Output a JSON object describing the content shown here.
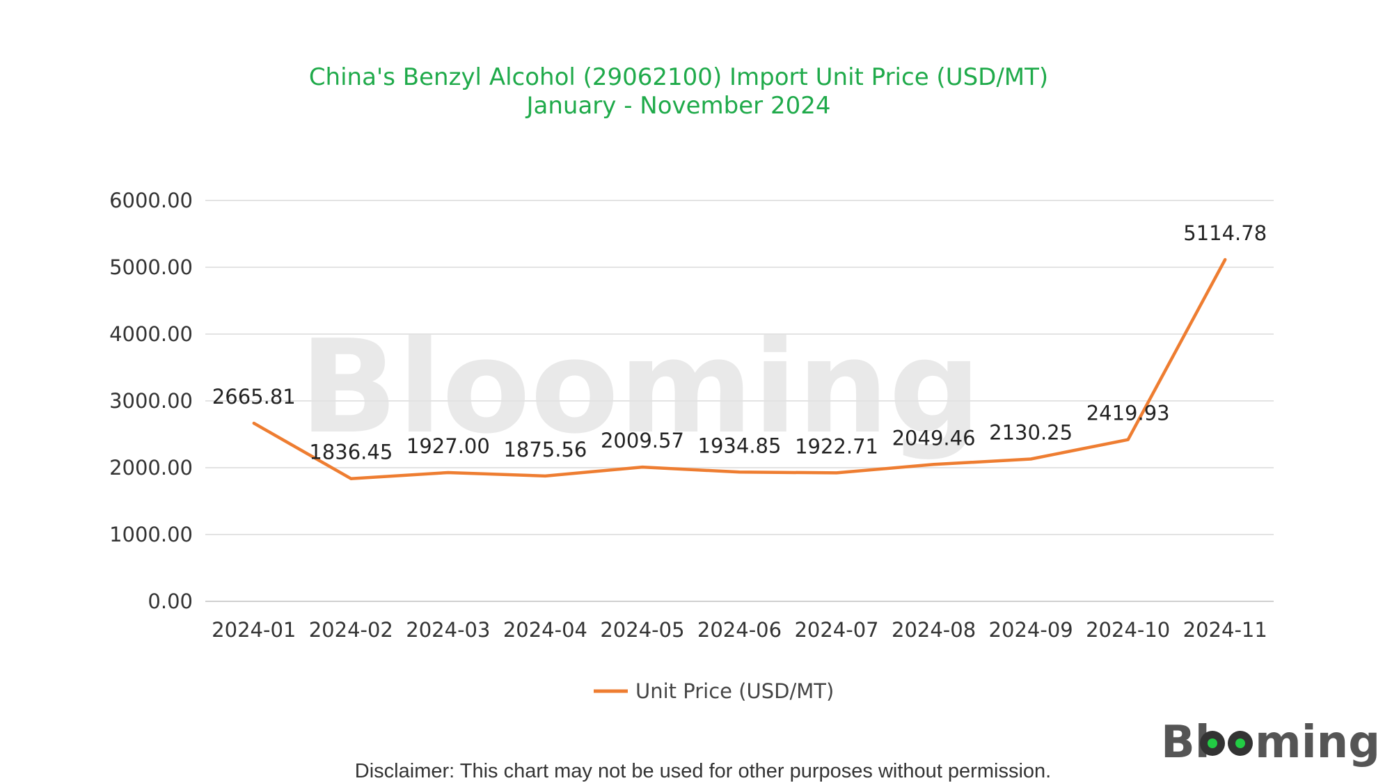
{
  "chart_data": {
    "type": "line",
    "title": "China's Benzyl Alcohol (29062100) Import Unit Price (USD/MT)",
    "subtitle": "January - November 2024",
    "categories": [
      "2024-01",
      "2024-02",
      "2024-03",
      "2024-04",
      "2024-05",
      "2024-06",
      "2024-07",
      "2024-08",
      "2024-09",
      "2024-10",
      "2024-11"
    ],
    "series": [
      {
        "name": "Unit Price (USD/MT)",
        "values": [
          2665.81,
          1836.45,
          1927.0,
          1875.56,
          2009.57,
          1934.85,
          1922.71,
          2049.46,
          2130.25,
          2419.93,
          5114.78
        ],
        "labels": [
          "2665.81",
          "1836.45",
          "1927.00",
          "1875.56",
          "2009.57",
          "1934.85",
          "1922.71",
          "2049.46",
          "2130.25",
          "2419.93",
          "5114.78"
        ]
      }
    ],
    "yticks": [
      "0.00",
      "1000.00",
      "2000.00",
      "3000.00",
      "4000.00",
      "5000.00",
      "6000.00"
    ],
    "ylim": [
      0,
      6000
    ],
    "grid": true,
    "legend_position": "bottom-center",
    "line_color": "#ee7d31",
    "title_color": "#1faa4a"
  },
  "watermark": "Blooming",
  "logo": {
    "text": "Blooming"
  },
  "disclaimer": "Disclaimer: This chart may not be used for other purposes without permission."
}
